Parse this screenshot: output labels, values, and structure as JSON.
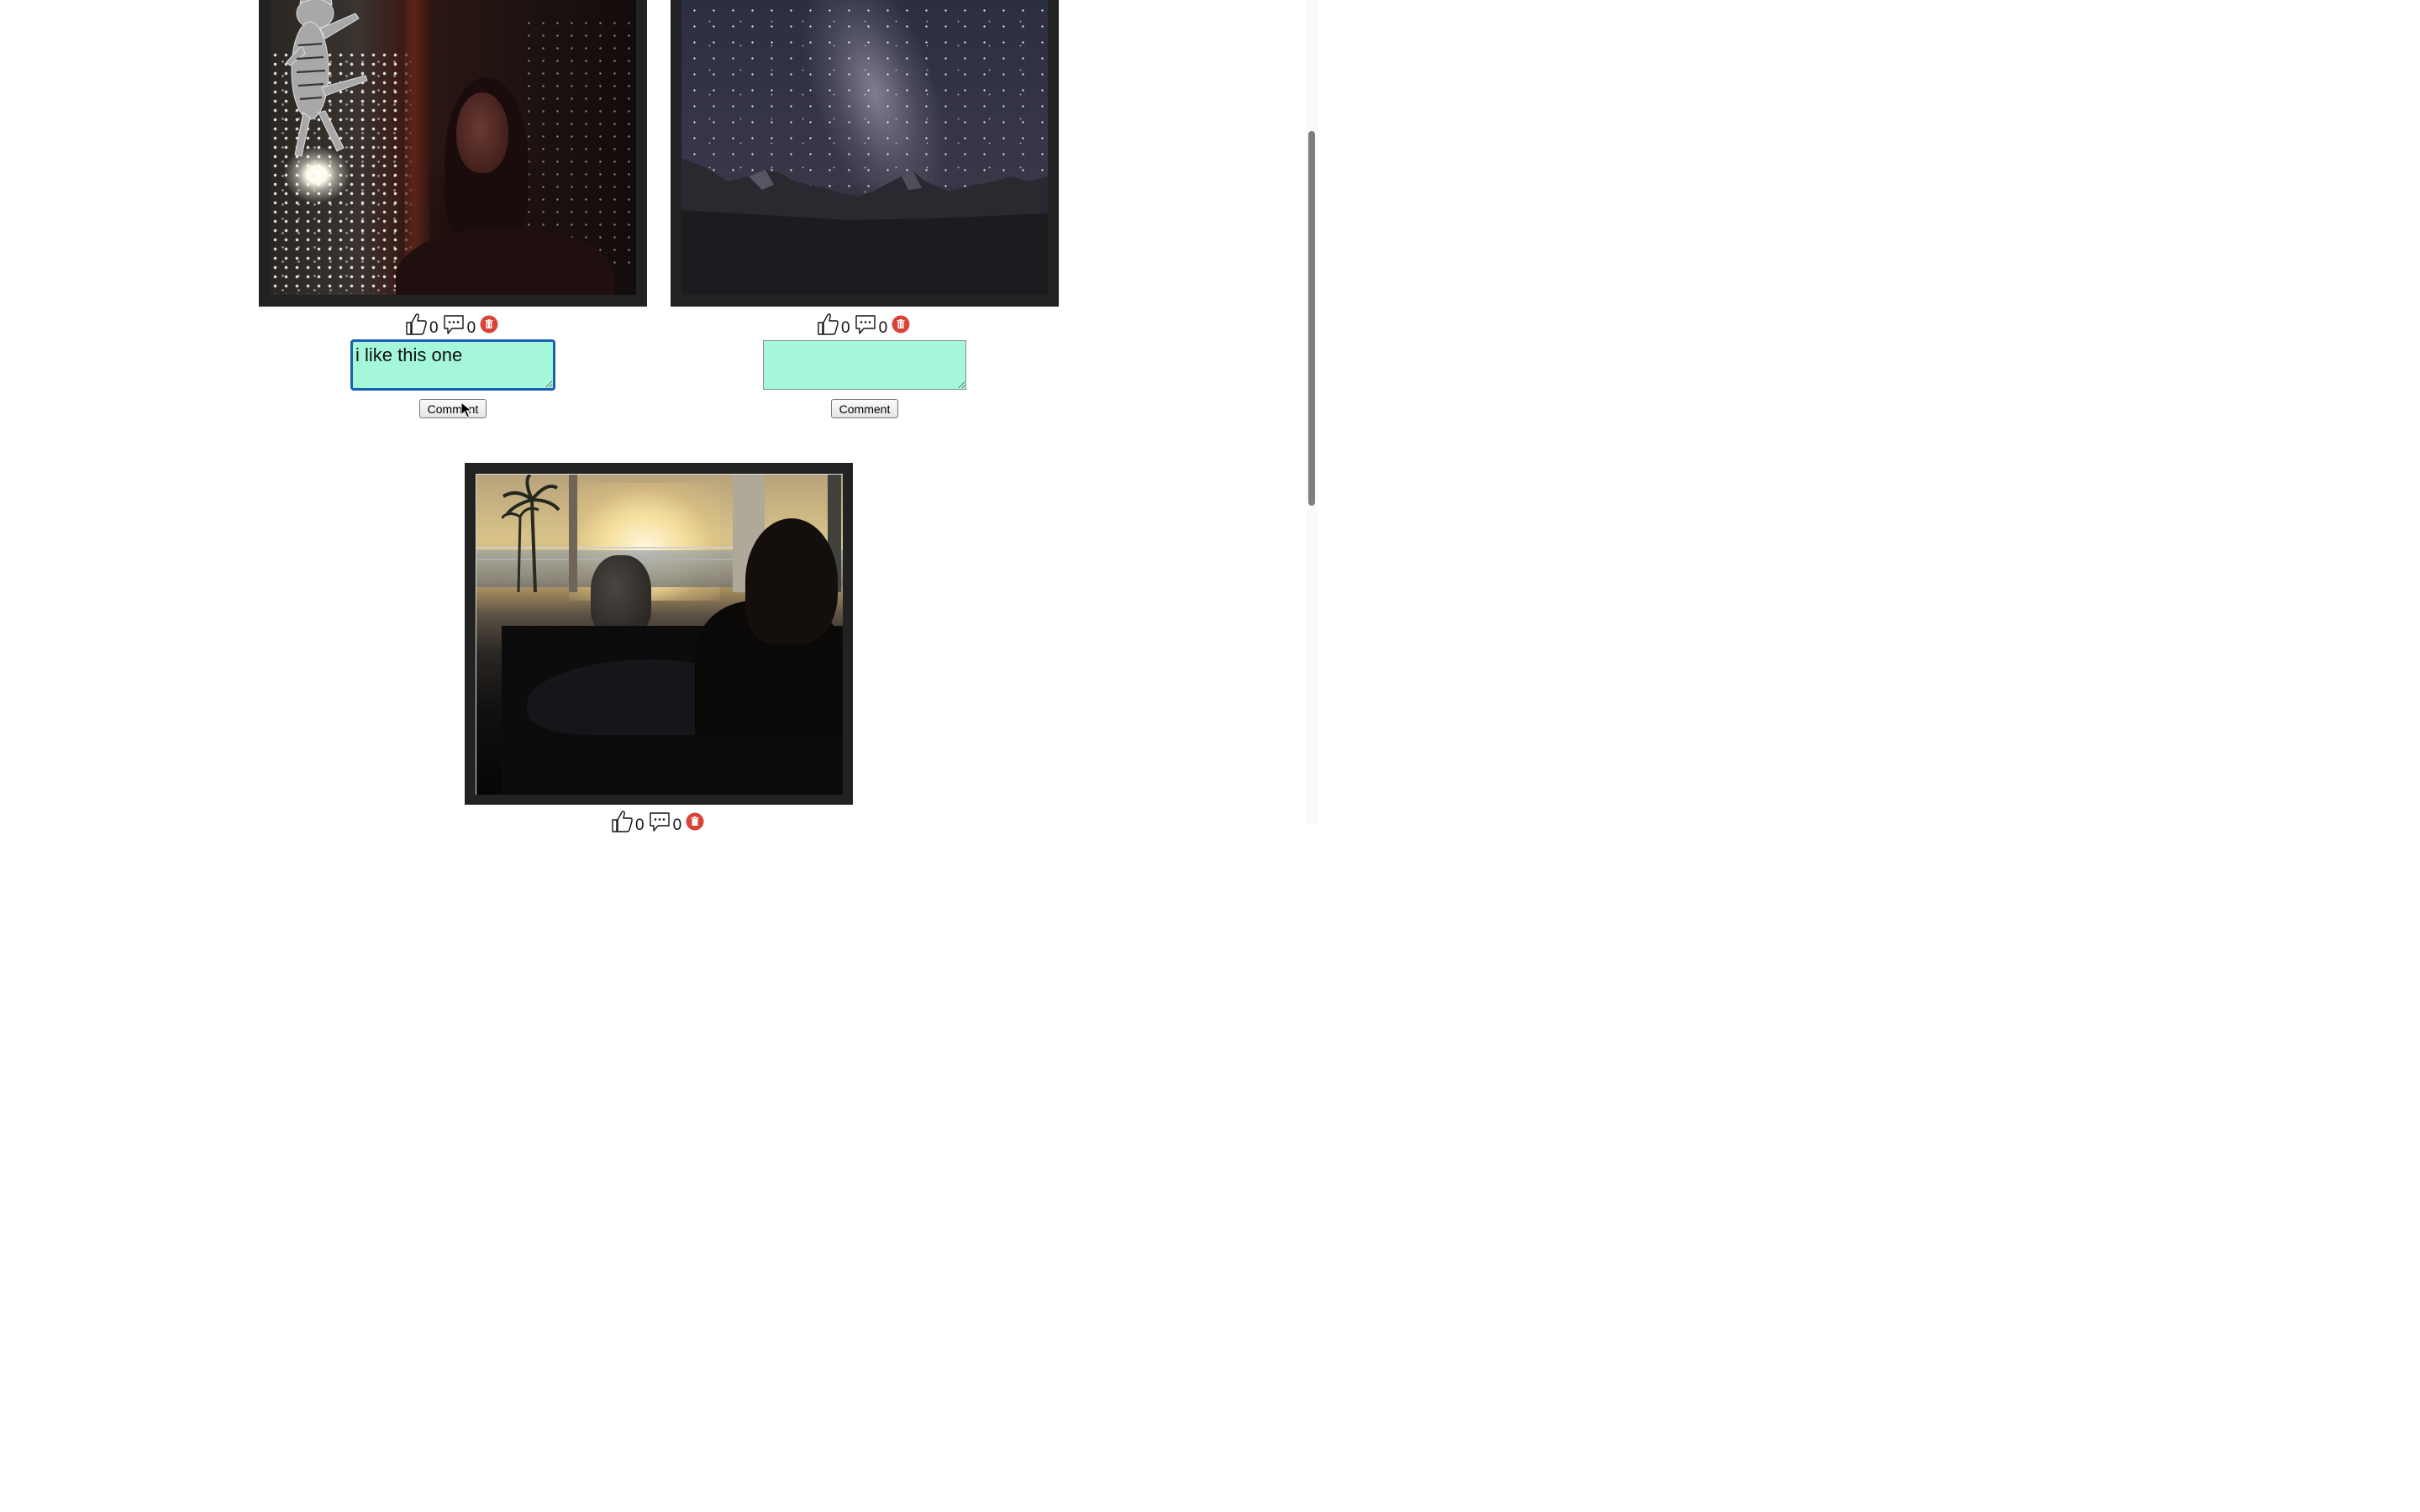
{
  "posts": [
    {
      "photo_icon": "selfie-with-cat-sticker-photo",
      "likes": "0",
      "comments": "0",
      "comment_value": "i like this one",
      "comment_placeholder": "",
      "comment_button": "Comment"
    },
    {
      "photo_icon": "milky-way-mountains-photo",
      "likes": "0",
      "comments": "0",
      "comment_value": "",
      "comment_placeholder": "",
      "comment_button": "Comment"
    },
    {
      "photo_icon": "sunset-terrace-photo",
      "likes": "0",
      "comments": "0"
    }
  ],
  "icons": {
    "like": "thumbs-up-icon",
    "comment": "speech-bubble-icon",
    "delete": "trash-icon"
  },
  "colors": {
    "frame": "#222222",
    "comment_box": "#a4f7d8",
    "delete_button": "#d9443a",
    "focus_ring": "#1a5fb4"
  }
}
